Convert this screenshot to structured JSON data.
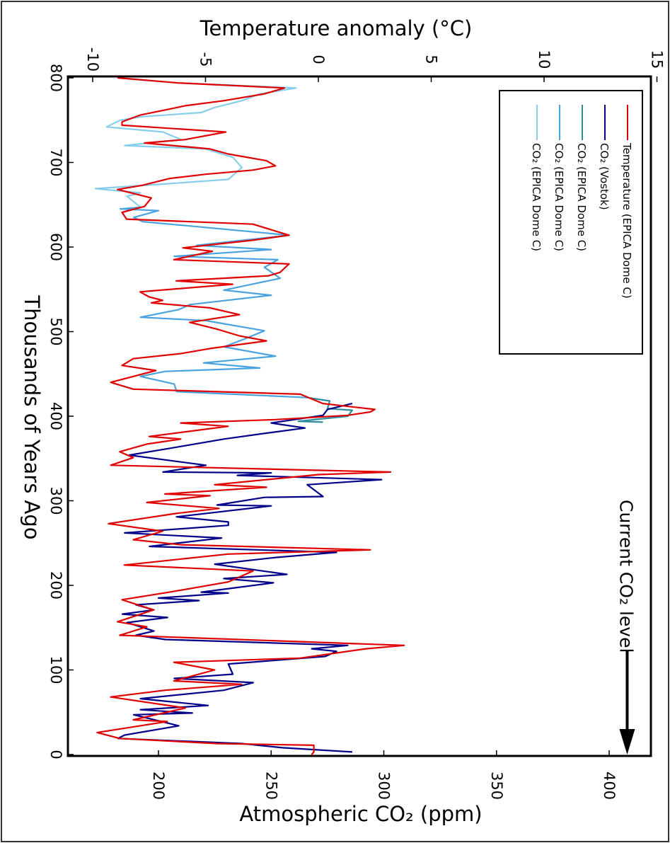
{
  "chart_data": {
    "type": "line",
    "orientation": "rotated 90 degrees clockwise",
    "x_axis": {
      "label": "Thousands of Years Ago",
      "range": [
        800,
        0
      ],
      "ticks": [
        "800",
        "700",
        "600",
        "500",
        "400",
        "300",
        "200",
        "100",
        "0"
      ]
    },
    "y_axis_temperature": {
      "label": "Temperature anomaly (°C)",
      "range": [
        -10,
        15
      ],
      "ticks": [
        "-10",
        "-5",
        "0",
        "5",
        "10",
        "15"
      ]
    },
    "y_axis_co2": {
      "label": "Atmospheric CO₂ (ppm)",
      "range": [
        160,
        421
      ],
      "ticks": [
        "200",
        "250",
        "300",
        "350",
        "400"
      ]
    },
    "annotation": {
      "text": "Current CO₂ level",
      "co2_ppm": 408
    },
    "grid": false,
    "legend": {
      "placement": "top-right"
    },
    "series": [
      {
        "name": "Temperature (EPICA Dome C)",
        "axis": "temperature",
        "color": "#e00000",
        "x": [
          800,
          794,
          788,
          781,
          773,
          767,
          762,
          756,
          748,
          744,
          736,
          727,
          723,
          716,
          710,
          702,
          696,
          691,
          686,
          681,
          673,
          668,
          658,
          648,
          641,
          633,
          627,
          614,
          608,
          599,
          595,
          585,
          580,
          570,
          566,
          560,
          556,
          547,
          541,
          537,
          534,
          528,
          520,
          511,
          503,
          495,
          489,
          480,
          474,
          468,
          460,
          454,
          440,
          432,
          426,
          415,
          408,
          405,
          401,
          396,
          392,
          388,
          376,
          373,
          367,
          358,
          351,
          342,
          334,
          331,
          319,
          316,
          308,
          306,
          298,
          291,
          285,
          273,
          264,
          254,
          248,
          242,
          237,
          224,
          217,
          204,
          192,
          183,
          171,
          157,
          151,
          141,
          129,
          125,
          114,
          109,
          100,
          87,
          83,
          76,
          68,
          55,
          41,
          39,
          26,
          19,
          13,
          11,
          3,
          0
        ],
        "y": [
          -8.9,
          -6.2,
          -1.5,
          -2.4,
          -4.2,
          -5.9,
          -6.8,
          -7.9,
          -8.7,
          -8.7,
          -4.1,
          -5.9,
          -7.7,
          -4.8,
          -4.0,
          -2.3,
          -1.9,
          -2.9,
          -5.0,
          -6.6,
          -7.8,
          -8.9,
          -7.4,
          -7.7,
          -8.7,
          -8.5,
          -2.9,
          -1.3,
          -2.9,
          -6.0,
          -4.7,
          -6.4,
          -1.3,
          -1.7,
          -2.2,
          -6.3,
          -3.8,
          -7.9,
          -7.5,
          -6.9,
          -7.4,
          -4.8,
          -3.5,
          -5.7,
          -4.5,
          -3.5,
          -2.3,
          -4.8,
          -6.1,
          -8.2,
          -8.7,
          -7.2,
          -9.2,
          -8.2,
          -0.8,
          0.2,
          2.5,
          2.3,
          1.3,
          -1.9,
          -6.1,
          -4.0,
          -7.5,
          -6.1,
          -7.6,
          -8.8,
          -8.2,
          -9.2,
          3.2,
          0.0,
          -4.6,
          -2.3,
          -6.8,
          -4.8,
          -7.6,
          -4.4,
          -6.3,
          -9.3,
          -6.9,
          -8.2,
          -6.1,
          2.3,
          -4.0,
          -8.6,
          -2.9,
          -4.0,
          -6.6,
          -8.7,
          -7.3,
          -8.9,
          -7.6,
          -8.8,
          3.8,
          2.1,
          -0.8,
          -6.4,
          -4.6,
          -6.4,
          -3.4,
          -6.8,
          -9.2,
          -5.9,
          -8.2,
          -6.7,
          -9.8,
          -8.8,
          -4.5,
          -0.2,
          -0.2,
          -0.3
        ]
      },
      {
        "name": "CO₂ (Vostok)",
        "axis": "co2",
        "color": "#00008b",
        "x": [
          415,
          408,
          401,
          392,
          386,
          380,
          373,
          362,
          354,
          342,
          334,
          333,
          330,
          325,
          319,
          305,
          304,
          295,
          294,
          281,
          275,
          271,
          262,
          256,
          246,
          239,
          233,
          225,
          213,
          208,
          203,
          192,
          191,
          185,
          182,
          177,
          171,
          166,
          162,
          156,
          146,
          141,
          136,
          129,
          125,
          122,
          116,
          107,
          95,
          90,
          85,
          76,
          66,
          58,
          53,
          49,
          47,
          34,
          23,
          19,
          13,
          8,
          3
        ],
        "y": [
          286,
          275,
          273,
          250,
          265,
          248,
          229,
          205,
          187,
          221,
          202,
          250,
          235,
          299,
          266,
          273,
          247,
          226,
          250,
          208,
          231,
          231,
          185,
          228,
          196,
          279,
          252,
          225,
          257,
          229,
          251,
          219,
          231,
          200,
          218,
          190,
          198,
          184,
          204,
          186,
          198,
          190,
          203,
          284,
          268,
          279,
          274,
          231,
          233,
          207,
          242,
          229,
          192,
          222,
          192,
          215,
          189,
          209,
          185,
          182,
          237,
          255,
          286
        ]
      },
      {
        "name": "CO₂ (EPICA Dome C)",
        "axis": "co2",
        "color": "#2e8b9a",
        "x": [
          422,
          418,
          409,
          407,
          400,
          394,
          393
        ],
        "y": [
          266,
          276,
          275,
          286,
          284,
          262,
          273
        ]
      },
      {
        "name": "CO₂ (EPICA Dome C)",
        "axis": "co2",
        "color": "#4aa3df",
        "x": [
          647,
          645,
          643,
          635,
          630,
          614,
          602,
          597,
          589,
          585,
          576,
          563,
          549,
          543,
          532,
          526,
          517,
          513,
          501,
          490,
          482,
          471,
          463,
          457,
          453,
          447,
          438,
          429,
          422
        ],
        "y": [
          192,
          183,
          200,
          189,
          193,
          258,
          217,
          250,
          207,
          253,
          247,
          254,
          229,
          250,
          214,
          209,
          192,
          221,
          247,
          237,
          229,
          252,
          220,
          245,
          203,
          192,
          207,
          208,
          266
        ]
      },
      {
        "name": "CO₂ (EPICA Dome C)",
        "axis": "co2",
        "color": "#87ceeb",
        "x": [
          800,
          794,
          788,
          781,
          773,
          765,
          759,
          754,
          750,
          742,
          736,
          727,
          720,
          716,
          706,
          694,
          680,
          675,
          669,
          664,
          660,
          647
        ],
        "y": [
          182,
          209,
          261,
          245,
          237,
          225,
          219,
          192,
          183,
          177,
          202,
          210,
          185,
          221,
          233,
          237,
          231,
          205,
          172,
          192,
          186,
          192
        ]
      }
    ]
  }
}
